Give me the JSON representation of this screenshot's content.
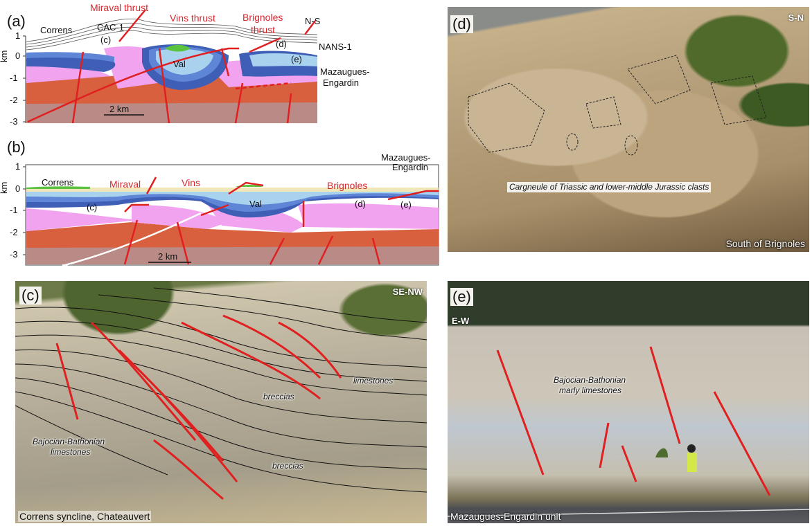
{
  "colors": {
    "fault": "#e02020",
    "basement": "#b98a86",
    "triassic_red": "#d9603f",
    "triassic_pink": "#f1a3f0",
    "jurassic_blue_dark": "#3f5fb7",
    "jurassic_blue": "#5f86d6",
    "jurassic_blue_light": "#a9d2ee",
    "cover_beige": "#f0e7b8",
    "tertiary_green": "#59c23f"
  },
  "panel_a": {
    "label": "(a)",
    "axis_unit": "km",
    "y_ticks": [
      "1",
      "0",
      "-1",
      "-2",
      "-3"
    ],
    "scale": "2 km",
    "labels": {
      "correns": "Correns",
      "cac1": "CAC-1",
      "c": "(c)",
      "miraval": "Miraval thrust",
      "vins": "Vins thrust",
      "brignoles": "Brignoles",
      "thrust": "thrust",
      "d": "(d)",
      "e": "(e)",
      "ns": "N-S",
      "nans1": "NANS-1",
      "val": "Val",
      "mazaugues1": "Mazaugues-",
      "engardin": "Engardin"
    }
  },
  "panel_b": {
    "label": "(b)",
    "axis_unit": "km",
    "y_ticks": [
      "1",
      "0",
      "-1",
      "-2",
      "-3"
    ],
    "scale": "2 km",
    "labels": {
      "correns": "Correns",
      "miraval": "Miraval",
      "vins": "Vins",
      "brignoles": "Brignoles",
      "c": "(c)",
      "val": "Val",
      "d": "(d)",
      "e": "(e)",
      "mazaugues1": "Mazaugues-",
      "engardin": "Engardin"
    }
  },
  "panel_c": {
    "label": "(c)",
    "orientation": "SE-NW",
    "caption": "Correns syncline, Chateauvert",
    "annotations": {
      "limestones": "limestones",
      "breccias1": "breccias",
      "breccias2": "breccias",
      "bajocian1": "Bajocian-Bathonian",
      "bajocian2": "limestones"
    }
  },
  "panel_d": {
    "label": "(d)",
    "orientation": "S-N",
    "caption": "South of Brignoles",
    "annotation": "Cargneule of Triassic and lower-middle Jurassic clasts"
  },
  "panel_e": {
    "label": "(e)",
    "orientation": "E-W",
    "caption": "Mazaugues-Engardin unit",
    "annotations": {
      "line1": "Bajocian-Bathonian",
      "line2": "marly limestones"
    }
  }
}
